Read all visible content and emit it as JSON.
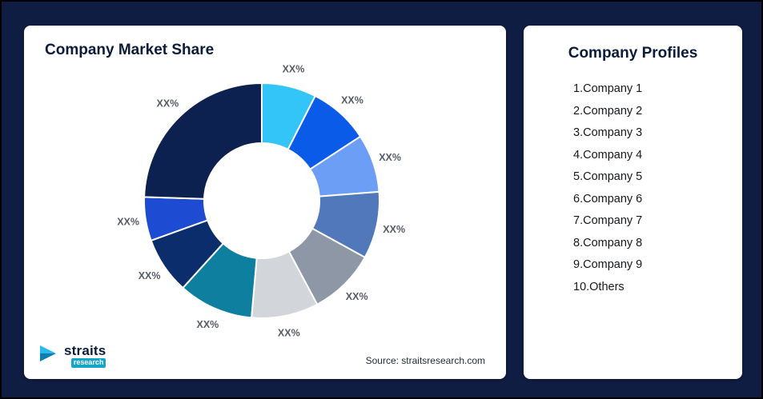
{
  "page": {
    "background_color": "#101d42"
  },
  "left_card": {
    "title": "Company Market Share",
    "source": "Source: straitsresearch.com",
    "logo": {
      "name": "straits",
      "sub": "research"
    }
  },
  "right_card": {
    "title": "Company Profiles",
    "items": [
      "1.Company 1",
      "2.Company 2",
      "3.Company 3",
      "4.Company 4",
      "5.Company 5",
      "6.Company 6",
      "7.Company 7",
      "8.Company 8",
      "9.Company 9",
      "10.Others"
    ]
  },
  "chart_data": {
    "type": "pie",
    "donut": true,
    "title": "Company Market Share",
    "start_angle_deg": 0,
    "categories": [
      "Company 1",
      "Company 2",
      "Company 3",
      "Company 4",
      "Company 5",
      "Company 6",
      "Company 7",
      "Company 8",
      "Company 9",
      "Others"
    ],
    "values": [
      7.5,
      8.3,
      8,
      9.2,
      9.2,
      9.2,
      10.3,
      7.8,
      6,
      24.5
    ],
    "display_labels": [
      "XX%",
      "XX%",
      "XX%",
      "XX%",
      "XX%",
      "XX%",
      "XX%",
      "XX%",
      "XX%",
      "XX%"
    ],
    "colors": [
      "#33c5f8",
      "#0a5ce8",
      "#6d9ef5",
      "#5078bb",
      "#8d97a5",
      "#d2d6da",
      "#0e7f9f",
      "#0c2d6b",
      "#1d4bd2",
      "#0d2150"
    ],
    "slice_border_color": "#ffffff",
    "label_color": "#565b66",
    "legend_position": "none",
    "source": "Source: straitsresearch.com"
  }
}
